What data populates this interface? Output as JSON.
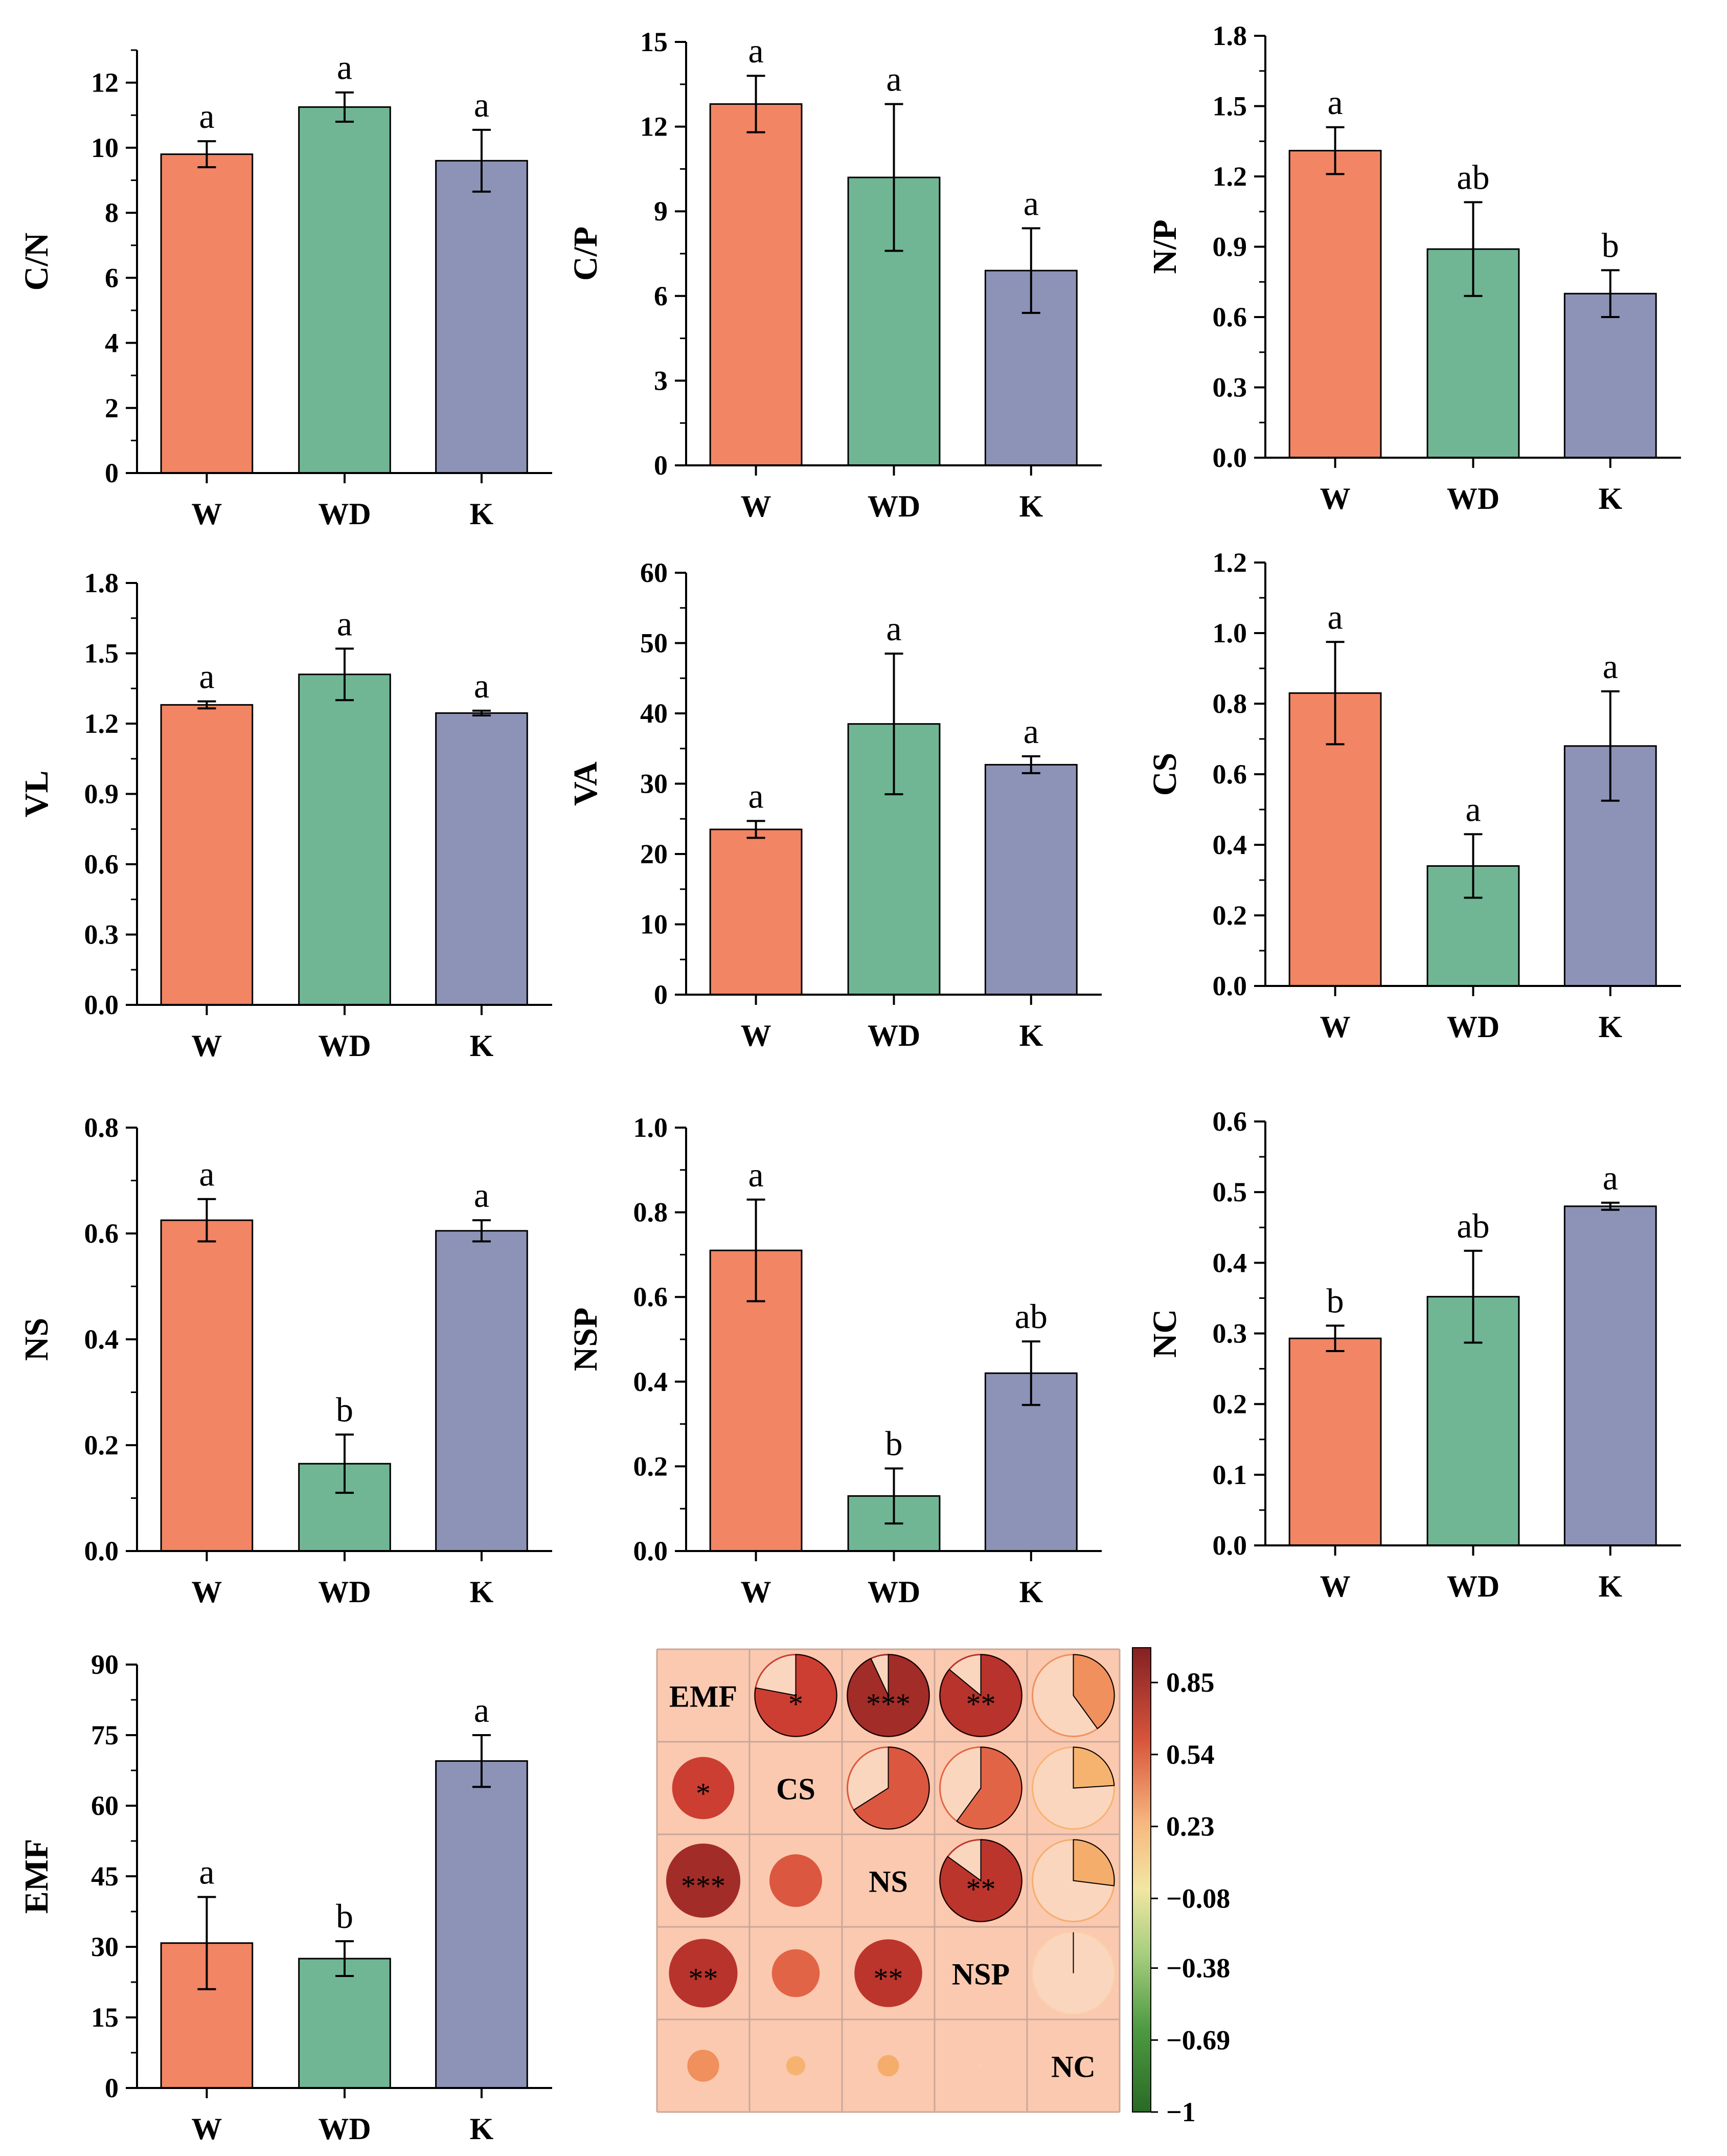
{
  "colors": {
    "W": "#F18564",
    "WD": "#70B694",
    "K": "#8D93B7",
    "corr_bg": "#FAC9B0",
    "corr_grid": "#C9A89A",
    "axis": "#000000"
  },
  "chart_data": [
    {
      "type": "bar",
      "ylabel": "C/N",
      "categories": [
        "W",
        "WD",
        "K"
      ],
      "values": [
        9.8,
        11.25,
        9.6
      ],
      "errors": [
        0.4,
        0.45,
        0.95
      ],
      "letters": [
        "a",
        "a",
        "a"
      ],
      "ylim": [
        0,
        13
      ],
      "yticks": [
        "0",
        "2",
        "4",
        "6",
        "8",
        "10",
        "12"
      ],
      "tickvals": [
        0,
        2,
        4,
        6,
        8,
        10,
        12
      ]
    },
    {
      "type": "bar",
      "ylabel": "C/P",
      "categories": [
        "W",
        "WD",
        "K"
      ],
      "values": [
        12.8,
        10.2,
        6.9
      ],
      "errors": [
        1.0,
        2.6,
        1.5
      ],
      "letters": [
        "a",
        "a",
        "a"
      ],
      "ylim": [
        0,
        15
      ],
      "yticks": [
        "0",
        "3",
        "6",
        "9",
        "12",
        "15"
      ],
      "tickvals": [
        0,
        3,
        6,
        9,
        12,
        15
      ]
    },
    {
      "type": "bar",
      "ylabel": "N/P",
      "categories": [
        "W",
        "WD",
        "K"
      ],
      "values": [
        1.31,
        0.89,
        0.7
      ],
      "errors": [
        0.1,
        0.2,
        0.1
      ],
      "letters": [
        "a",
        "ab",
        "b"
      ],
      "ylim": [
        0,
        1.8
      ],
      "yticks": [
        "0.0",
        "0.3",
        "0.6",
        "0.9",
        "1.2",
        "1.5",
        "1.8"
      ],
      "tickvals": [
        0,
        0.3,
        0.6,
        0.9,
        1.2,
        1.5,
        1.8
      ]
    },
    {
      "type": "bar",
      "ylabel": "VL",
      "categories": [
        "W",
        "WD",
        "K"
      ],
      "values": [
        1.28,
        1.41,
        1.245
      ],
      "errors": [
        0.015,
        0.11,
        0.01
      ],
      "letters": [
        "a",
        "a",
        "a"
      ],
      "ylim": [
        0,
        1.8
      ],
      "yticks": [
        "0.0",
        "0.3",
        "0.6",
        "0.9",
        "1.2",
        "1.5",
        "1.8"
      ],
      "tickvals": [
        0,
        0.3,
        0.6,
        0.9,
        1.2,
        1.5,
        1.8
      ]
    },
    {
      "type": "bar",
      "ylabel": "VA",
      "categories": [
        "W",
        "WD",
        "K"
      ],
      "values": [
        23.5,
        38.5,
        32.7
      ],
      "errors": [
        1.2,
        10.0,
        1.2
      ],
      "letters": [
        "a",
        "a",
        "a"
      ],
      "ylim": [
        0,
        60
      ],
      "yticks": [
        "0",
        "10",
        "20",
        "30",
        "40",
        "50",
        "60"
      ],
      "tickvals": [
        0,
        10,
        20,
        30,
        40,
        50,
        60
      ]
    },
    {
      "type": "bar",
      "ylabel": "CS",
      "categories": [
        "W",
        "WD",
        "K"
      ],
      "values": [
        0.83,
        0.34,
        0.68
      ],
      "errors": [
        0.145,
        0.09,
        0.155
      ],
      "letters": [
        "a",
        "a",
        "a"
      ],
      "ylim": [
        0,
        1.2
      ],
      "yticks": [
        "0.0",
        "0.2",
        "0.4",
        "0.6",
        "0.8",
        "1.0",
        "1.2"
      ],
      "tickvals": [
        0,
        0.2,
        0.4,
        0.6,
        0.8,
        1.0,
        1.2
      ]
    },
    {
      "type": "bar",
      "ylabel": "NS",
      "categories": [
        "W",
        "WD",
        "K"
      ],
      "values": [
        0.625,
        0.165,
        0.605
      ],
      "errors": [
        0.04,
        0.055,
        0.02
      ],
      "letters": [
        "a",
        "b",
        "a"
      ],
      "ylim": [
        0,
        0.8
      ],
      "yticks": [
        "0.0",
        "0.2",
        "0.4",
        "0.6",
        "0.8"
      ],
      "tickvals": [
        0,
        0.2,
        0.4,
        0.6,
        0.8
      ]
    },
    {
      "type": "bar",
      "ylabel": "NSP",
      "categories": [
        "W",
        "WD",
        "K"
      ],
      "values": [
        0.71,
        0.13,
        0.42
      ],
      "errors": [
        0.12,
        0.065,
        0.075
      ],
      "letters": [
        "a",
        "b",
        "ab"
      ],
      "ylim": [
        0,
        1.0
      ],
      "yticks": [
        "0.0",
        "0.2",
        "0.4",
        "0.6",
        "0.8",
        "1.0"
      ],
      "tickvals": [
        0,
        0.2,
        0.4,
        0.6,
        0.8,
        1.0
      ]
    },
    {
      "type": "bar",
      "ylabel": "NC",
      "categories": [
        "W",
        "WD",
        "K"
      ],
      "values": [
        0.293,
        0.352,
        0.48
      ],
      "errors": [
        0.018,
        0.065,
        0.005
      ],
      "letters": [
        "b",
        "ab",
        "a"
      ],
      "ylim": [
        0,
        0.6
      ],
      "yticks": [
        "0.0",
        "0.1",
        "0.2",
        "0.3",
        "0.4",
        "0.5",
        "0.6"
      ],
      "tickvals": [
        0,
        0.1,
        0.2,
        0.3,
        0.4,
        0.5,
        0.6
      ]
    },
    {
      "type": "bar",
      "ylabel": "EMF",
      "categories": [
        "W",
        "WD",
        "K"
      ],
      "values": [
        30.8,
        27.5,
        69.5
      ],
      "errors": [
        9.8,
        3.7,
        5.5
      ],
      "letters": [
        "a",
        "b",
        "a"
      ],
      "ylim": [
        0,
        90
      ],
      "yticks": [
        "0",
        "15",
        "30",
        "45",
        "60",
        "75",
        "90"
      ],
      "tickvals": [
        0,
        15,
        30,
        45,
        60,
        75,
        90
      ]
    },
    {
      "type": "heatmap",
      "variables": [
        "EMF",
        "CS",
        "NS",
        "NSP",
        "NC"
      ],
      "matrix": [
        [
          1,
          0.78,
          0.93,
          0.86,
          0.4
        ],
        [
          0.78,
          1,
          0.66,
          0.6,
          0.24
        ],
        [
          0.93,
          0.66,
          1,
          0.85,
          0.27
        ],
        [
          0.86,
          0.6,
          0.85,
          1,
          0.002
        ],
        [
          0.4,
          0.24,
          0.27,
          0.002,
          1
        ]
      ],
      "significance": [
        [
          "",
          "*",
          "***",
          "**",
          ""
        ],
        [
          "*",
          "",
          "",
          "",
          ""
        ],
        [
          "***",
          "",
          "",
          "**",
          ""
        ],
        [
          "**",
          "",
          "**",
          "",
          ""
        ],
        [
          "",
          "",
          "",
          "",
          ""
        ]
      ],
      "colorbar": {
        "range": [
          -1,
          1
        ],
        "ticks": [
          "0.85",
          "0.54",
          "0.23",
          "−0.08",
          "−0.38",
          "−0.69",
          "−1"
        ],
        "tickvals": [
          0.85,
          0.54,
          0.23,
          -0.08,
          -0.38,
          -0.69,
          -1
        ]
      }
    }
  ]
}
